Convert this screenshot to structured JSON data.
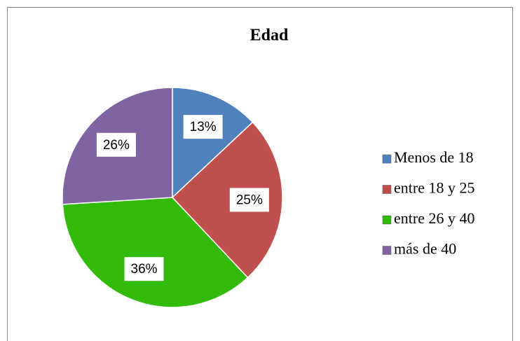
{
  "chart_data": {
    "type": "pie",
    "title": "Edad",
    "categories": [
      "Menos de 18",
      "entre 18 y 25",
      "entre 26 y 40",
      "más de 40"
    ],
    "values": [
      13,
      25,
      36,
      26
    ],
    "value_labels": [
      "13%",
      "25%",
      "36%",
      "26%"
    ],
    "colors": [
      "#4f81bd",
      "#c0504d",
      "#33bb0b",
      "#8064a2"
    ],
    "legend": "right"
  }
}
